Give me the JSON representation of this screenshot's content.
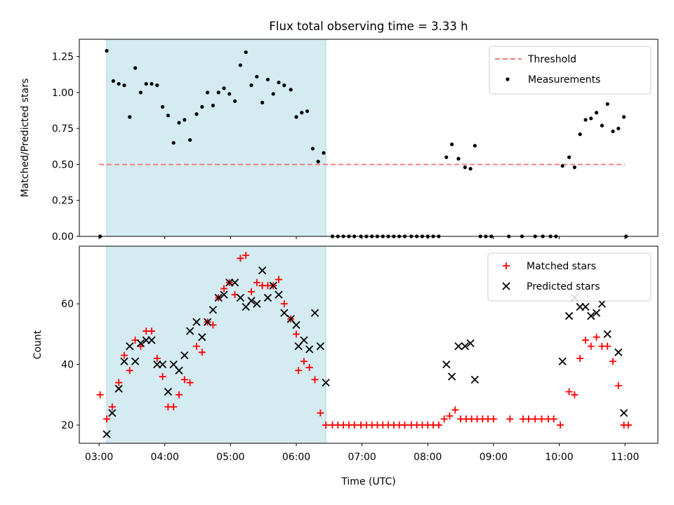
{
  "figure": {
    "title": "Flux total observing time = 3.33 h"
  },
  "chart_data": [
    {
      "type": "scatter",
      "panel": "top",
      "title": "Flux total observing time = 3.33 h",
      "xlabel": "",
      "ylabel": "Matched/Predicted stars",
      "xlim": [
        "02:42",
        "11:30"
      ],
      "ylim": [
        0,
        1.37
      ],
      "yticks": [
        "0.00",
        "0.25",
        "0.50",
        "0.75",
        "1.00",
        "1.25"
      ],
      "ytick_values": [
        0,
        0.25,
        0.5,
        0.75,
        1.0,
        1.25
      ],
      "shaded_region": {
        "x_start": "03:07",
        "x_end": "06:27",
        "color": "#d4ebf1"
      },
      "threshold": {
        "name": "Threshold",
        "value": 0.5,
        "x_start": "03:00",
        "x_end": "11:00",
        "color": "#f08080",
        "style": "dashed"
      },
      "legend": {
        "position": "top-right",
        "entries": [
          "Threshold",
          "Measurements"
        ]
      },
      "series": [
        {
          "name": "Measurements",
          "marker": "dot",
          "color": "#000000",
          "points": [
            [
              "03:01",
              0.0
            ],
            [
              "03:07",
              1.29
            ],
            [
              "03:13",
              1.08
            ],
            [
              "03:18",
              1.06
            ],
            [
              "03:23",
              1.05
            ],
            [
              "03:28",
              0.83
            ],
            [
              "03:33",
              1.17
            ],
            [
              "03:38",
              1.0
            ],
            [
              "03:43",
              1.06
            ],
            [
              "03:48",
              1.06
            ],
            [
              "03:53",
              1.05
            ],
            [
              "03:58",
              0.9
            ],
            [
              "04:03",
              0.84
            ],
            [
              "04:08",
              0.65
            ],
            [
              "04:13",
              0.79
            ],
            [
              "04:18",
              0.81
            ],
            [
              "04:23",
              0.67
            ],
            [
              "04:29",
              0.85
            ],
            [
              "04:34",
              0.9
            ],
            [
              "04:39",
              1.0
            ],
            [
              "04:44",
              0.91
            ],
            [
              "04:49",
              1.0
            ],
            [
              "04:54",
              1.03
            ],
            [
              "04:59",
              0.99
            ],
            [
              "05:04",
              0.94
            ],
            [
              "05:09",
              1.19
            ],
            [
              "05:14",
              1.28
            ],
            [
              "05:19",
              1.05
            ],
            [
              "05:24",
              1.11
            ],
            [
              "05:29",
              0.93
            ],
            [
              "05:34",
              1.09
            ],
            [
              "05:39",
              0.99
            ],
            [
              "05:44",
              1.07
            ],
            [
              "05:49",
              1.05
            ],
            [
              "05:55",
              1.02
            ],
            [
              "06:00",
              0.83
            ],
            [
              "06:05",
              0.86
            ],
            [
              "06:10",
              0.87
            ],
            [
              "06:15",
              0.61
            ],
            [
              "06:20",
              0.52
            ],
            [
              "06:25",
              0.58
            ],
            [
              "06:33",
              0.0
            ],
            [
              "06:38",
              0.0
            ],
            [
              "06:43",
              0.0
            ],
            [
              "06:48",
              0.0
            ],
            [
              "06:53",
              0.0
            ],
            [
              "06:59",
              0.0
            ],
            [
              "07:04",
              0.0
            ],
            [
              "07:09",
              0.0
            ],
            [
              "07:14",
              0.0
            ],
            [
              "07:19",
              0.0
            ],
            [
              "07:24",
              0.0
            ],
            [
              "07:29",
              0.0
            ],
            [
              "07:34",
              0.0
            ],
            [
              "07:39",
              0.0
            ],
            [
              "07:45",
              0.0
            ],
            [
              "07:50",
              0.0
            ],
            [
              "07:55",
              0.0
            ],
            [
              "08:00",
              0.0
            ],
            [
              "08:05",
              0.0
            ],
            [
              "08:10",
              0.0
            ],
            [
              "08:17",
              0.55
            ],
            [
              "08:22",
              0.64
            ],
            [
              "08:28",
              0.54
            ],
            [
              "08:34",
              0.48
            ],
            [
              "08:39",
              0.47
            ],
            [
              "08:43",
              0.63
            ],
            [
              "08:48",
              0.0
            ],
            [
              "08:53",
              0.0
            ],
            [
              "08:58",
              0.0
            ],
            [
              "09:14",
              0.0
            ],
            [
              "09:26",
              0.0
            ],
            [
              "09:38",
              0.0
            ],
            [
              "09:45",
              0.0
            ],
            [
              "09:52",
              0.0
            ],
            [
              "09:57",
              0.0
            ],
            [
              "10:03",
              0.49
            ],
            [
              "10:09",
              0.55
            ],
            [
              "10:14",
              0.48
            ],
            [
              "10:19",
              0.71
            ],
            [
              "10:24",
              0.81
            ],
            [
              "10:29",
              0.82
            ],
            [
              "10:34",
              0.86
            ],
            [
              "10:39",
              0.77
            ],
            [
              "10:44",
              0.92
            ],
            [
              "10:49",
              0.73
            ],
            [
              "10:54",
              0.75
            ],
            [
              "10:59",
              0.83
            ],
            [
              "11:01",
              0.0
            ]
          ]
        }
      ]
    },
    {
      "type": "scatter",
      "panel": "bottom",
      "title": "",
      "xlabel": "Time (UTC)",
      "ylabel": "Count",
      "xlim": [
        "02:42",
        "11:30"
      ],
      "ylim": [
        14,
        79
      ],
      "yticks": [
        "20",
        "40",
        "60"
      ],
      "ytick_values": [
        20,
        40,
        60
      ],
      "xticks": [
        "03:00",
        "04:00",
        "05:00",
        "06:00",
        "07:00",
        "08:00",
        "09:00",
        "10:00",
        "11:00"
      ],
      "shaded_region": {
        "x_start": "03:07",
        "x_end": "06:27",
        "color": "#d4ebf1"
      },
      "legend": {
        "position": "top-right",
        "entries": [
          "Matched stars",
          "Predicted stars"
        ]
      },
      "series": [
        {
          "name": "Matched stars",
          "marker": "plus",
          "color": "#ff0000",
          "points": [
            [
              "03:01",
              30
            ],
            [
              "03:07",
              22
            ],
            [
              "03:12",
              26
            ],
            [
              "03:18",
              34
            ],
            [
              "03:23",
              43
            ],
            [
              "03:28",
              38
            ],
            [
              "03:33",
              48
            ],
            [
              "03:38",
              46
            ],
            [
              "03:43",
              51
            ],
            [
              "03:48",
              51
            ],
            [
              "03:53",
              42
            ],
            [
              "03:58",
              36
            ],
            [
              "04:03",
              26
            ],
            [
              "04:08",
              26
            ],
            [
              "04:13",
              30
            ],
            [
              "04:18",
              35
            ],
            [
              "04:23",
              34
            ],
            [
              "04:29",
              46
            ],
            [
              "04:34",
              44
            ],
            [
              "04:39",
              54
            ],
            [
              "04:44",
              53
            ],
            [
              "04:49",
              62
            ],
            [
              "04:54",
              65
            ],
            [
              "04:59",
              67
            ],
            [
              "05:04",
              63
            ],
            [
              "05:09",
              75
            ],
            [
              "05:14",
              76
            ],
            [
              "05:19",
              64
            ],
            [
              "05:24",
              67
            ],
            [
              "05:29",
              66
            ],
            [
              "05:34",
              66
            ],
            [
              "05:39",
              66
            ],
            [
              "05:44",
              68
            ],
            [
              "05:49",
              60
            ],
            [
              "05:55",
              55
            ],
            [
              "06:00",
              50
            ],
            [
              "06:02",
              38
            ],
            [
              "06:07",
              41
            ],
            [
              "06:12",
              39
            ],
            [
              "06:17",
              35
            ],
            [
              "06:22",
              24
            ],
            [
              "06:27",
              20
            ],
            [
              "06:33",
              20
            ],
            [
              "06:38",
              20
            ],
            [
              "06:43",
              20
            ],
            [
              "06:48",
              20
            ],
            [
              "06:53",
              20
            ],
            [
              "06:59",
              20
            ],
            [
              "07:04",
              20
            ],
            [
              "07:09",
              20
            ],
            [
              "07:14",
              20
            ],
            [
              "07:19",
              20
            ],
            [
              "07:24",
              20
            ],
            [
              "07:29",
              20
            ],
            [
              "07:34",
              20
            ],
            [
              "07:39",
              20
            ],
            [
              "07:45",
              20
            ],
            [
              "07:50",
              20
            ],
            [
              "07:55",
              20
            ],
            [
              "08:00",
              20
            ],
            [
              "08:05",
              20
            ],
            [
              "08:10",
              20
            ],
            [
              "08:15",
              22
            ],
            [
              "08:20",
              23
            ],
            [
              "08:25",
              25
            ],
            [
              "08:30",
              22
            ],
            [
              "08:35",
              22
            ],
            [
              "08:40",
              22
            ],
            [
              "08:45",
              22
            ],
            [
              "08:50",
              22
            ],
            [
              "08:55",
              22
            ],
            [
              "09:00",
              22
            ],
            [
              "09:15",
              22
            ],
            [
              "09:27",
              22
            ],
            [
              "09:32",
              22
            ],
            [
              "09:38",
              22
            ],
            [
              "09:44",
              22
            ],
            [
              "09:50",
              22
            ],
            [
              "09:55",
              22
            ],
            [
              "10:01",
              20
            ],
            [
              "10:09",
              31
            ],
            [
              "10:14",
              30
            ],
            [
              "10:19",
              42
            ],
            [
              "10:24",
              48
            ],
            [
              "10:29",
              46
            ],
            [
              "10:34",
              49
            ],
            [
              "10:39",
              46
            ],
            [
              "10:44",
              46
            ],
            [
              "10:49",
              41
            ],
            [
              "10:54",
              33
            ],
            [
              "10:59",
              20
            ],
            [
              "11:03",
              20
            ]
          ]
        },
        {
          "name": "Predicted stars",
          "marker": "x",
          "color": "#000000",
          "points": [
            [
              "03:07",
              17
            ],
            [
              "03:12",
              24
            ],
            [
              "03:18",
              32
            ],
            [
              "03:23",
              41
            ],
            [
              "03:28",
              46
            ],
            [
              "03:33",
              41
            ],
            [
              "03:38",
              47
            ],
            [
              "03:43",
              48
            ],
            [
              "03:48",
              48
            ],
            [
              "03:53",
              40
            ],
            [
              "03:58",
              40
            ],
            [
              "04:03",
              31
            ],
            [
              "04:08",
              40
            ],
            [
              "04:13",
              38
            ],
            [
              "04:18",
              43
            ],
            [
              "04:23",
              51
            ],
            [
              "04:29",
              54
            ],
            [
              "04:34",
              49
            ],
            [
              "04:39",
              54
            ],
            [
              "04:44",
              58
            ],
            [
              "04:49",
              62
            ],
            [
              "04:54",
              63
            ],
            [
              "04:59",
              67
            ],
            [
              "05:04",
              67
            ],
            [
              "05:09",
              62
            ],
            [
              "05:14",
              59
            ],
            [
              "05:19",
              61
            ],
            [
              "05:24",
              60
            ],
            [
              "05:29",
              71
            ],
            [
              "05:34",
              62
            ],
            [
              "05:39",
              66
            ],
            [
              "05:44",
              63
            ],
            [
              "05:49",
              57
            ],
            [
              "05:55",
              55
            ],
            [
              "06:00",
              53
            ],
            [
              "06:02",
              46
            ],
            [
              "06:07",
              48
            ],
            [
              "06:12",
              45
            ],
            [
              "06:17",
              57
            ],
            [
              "06:22",
              46
            ],
            [
              "06:27",
              34
            ],
            [
              "08:17",
              40
            ],
            [
              "08:22",
              36
            ],
            [
              "08:28",
              46
            ],
            [
              "08:34",
              46
            ],
            [
              "08:39",
              47
            ],
            [
              "08:43",
              35
            ],
            [
              "10:03",
              41
            ],
            [
              "10:09",
              56
            ],
            [
              "10:14",
              62
            ],
            [
              "10:19",
              59
            ],
            [
              "10:24",
              59
            ],
            [
              "10:29",
              56
            ],
            [
              "10:34",
              57
            ],
            [
              "10:39",
              60
            ],
            [
              "10:44",
              50
            ],
            [
              "10:54",
              44
            ],
            [
              "10:59",
              24
            ]
          ]
        }
      ]
    }
  ]
}
